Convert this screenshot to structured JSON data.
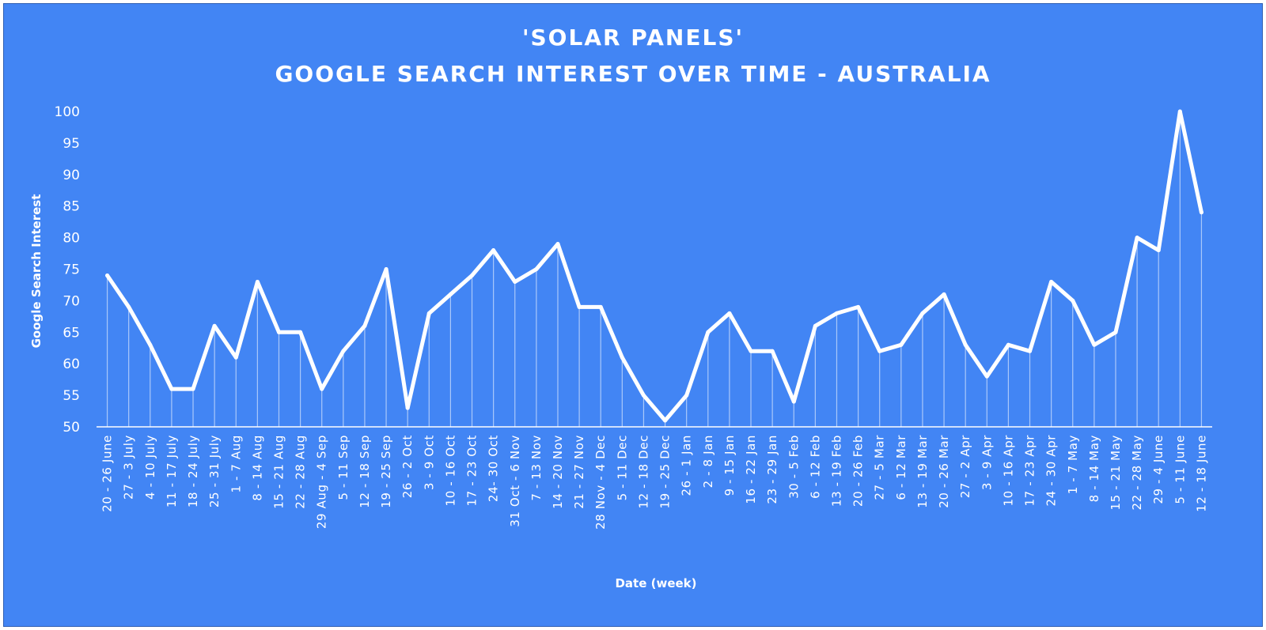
{
  "chart_data": {
    "type": "line",
    "title": "'SOLAR PANELS'",
    "subtitle": "GOOGLE SEARCH INTEREST OVER TIME - AUSTRALIA",
    "xlabel": "Date (week)",
    "ylabel": "Google Search Interest",
    "ylim": [
      50,
      100
    ],
    "yticks": [
      50,
      55,
      60,
      65,
      70,
      75,
      80,
      85,
      90,
      95,
      100
    ],
    "grid": false,
    "drop_lines": true,
    "colors": {
      "background": "#4285f4",
      "line": "#ffffff",
      "text": "#ffffff"
    },
    "categories": [
      "20 - 26 June",
      "27 - 3 July",
      "4 - 10 July",
      "11 - 17 July",
      "18 - 24 July",
      "25 - 31 July",
      "1 - 7 Aug",
      "8 - 14 Aug",
      "15 - 21 Aug",
      "22 - 28 Aug",
      "29 Aug - 4 Sep",
      "5 - 11 Sep",
      "12 - 18 Sep",
      "19 - 25 Sep",
      "26 - 2 Oct",
      "3 - 9 Oct",
      "10 - 16 Oct",
      "17 - 23 Oct",
      "24- 30 Oct",
      "31 Oct - 6 Nov",
      "7 - 13 Nov",
      "14 - 20 Nov",
      "21 - 27 Nov",
      "28 Nov - 4 Dec",
      "5 - 11 Dec",
      "12 - 18 Dec",
      "19 - 25 Dec",
      "26 - 1 Jan",
      "2 - 8 Jan",
      "9 - 15 Jan",
      "16 - 22 Jan",
      "23 - 29 Jan",
      "30 - 5 Feb",
      "6 - 12 Feb",
      "13 - 19 Feb",
      "20 - 26 Feb",
      "27 - 5 Mar",
      "6 - 12 Mar",
      "13 - 19 Mar",
      "20 - 26 Mar",
      "27 - 2 Apr",
      "3 - 9 Apr",
      "10 - 16 Apr",
      "17 - 23 Apr",
      "24 - 30 Apr",
      "1 - 7 May",
      "8 - 14 May",
      "15 - 21 May",
      "22 - 28 May",
      "29 - 4 June",
      "5 - 11 June",
      "12 - 18 June"
    ],
    "series": [
      {
        "values": [
          74,
          69,
          63,
          56,
          56,
          66,
          61,
          73,
          65,
          65,
          56,
          62,
          66,
          75,
          53,
          68,
          71,
          74,
          78,
          73,
          75,
          79,
          69,
          69,
          61,
          55,
          51,
          55,
          65,
          68,
          62,
          62,
          54,
          66,
          68,
          69,
          62,
          63,
          68,
          71,
          63,
          58,
          63,
          62,
          73,
          70,
          63,
          65,
          80,
          78,
          100,
          84
        ]
      }
    ]
  }
}
